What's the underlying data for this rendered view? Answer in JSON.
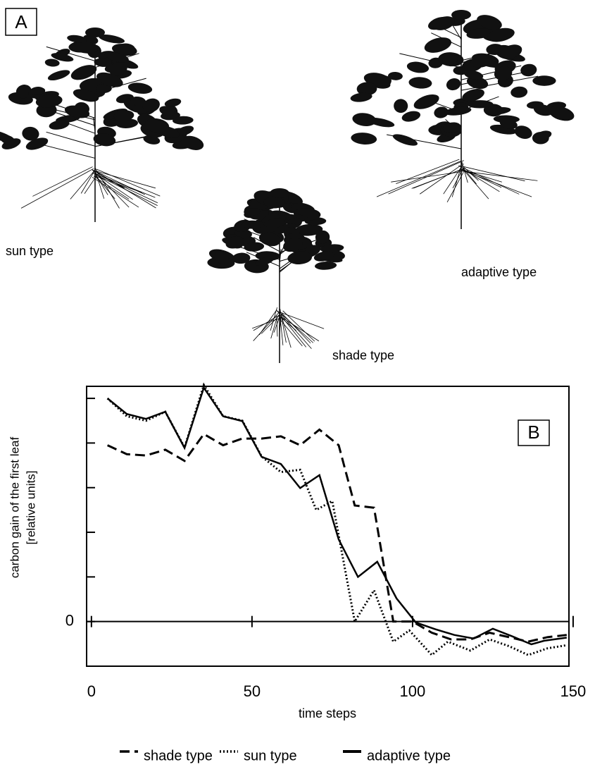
{
  "panel_a": {
    "label": "A",
    "plants": [
      "sun type",
      "shade type",
      "adaptive type"
    ]
  },
  "panel_b_label": "B",
  "chart_data": {
    "type": "line",
    "xlabel": "time steps",
    "ylabel": [
      "carbon gain of the first leaf",
      "[relative units]"
    ],
    "xlim": [
      -1.5,
      148.7
    ],
    "xticks": [
      0,
      50,
      100,
      150
    ],
    "ylim": [
      -1,
      5.27
    ],
    "yticks": [
      0
    ],
    "ytick_marks": [
      1,
      2,
      3,
      4,
      5
    ],
    "zero_line": true,
    "series": [
      {
        "name": "shade type",
        "color": "#000000",
        "style": "dashed",
        "x": [
          5,
          11,
          17,
          23,
          29,
          35,
          41,
          47,
          53,
          59,
          65,
          71,
          77,
          82,
          88,
          94,
          100,
          106,
          112,
          118,
          124,
          130,
          136,
          142,
          148
        ],
        "values": [
          3.95,
          3.75,
          3.72,
          3.85,
          3.6,
          4.2,
          3.95,
          4.1,
          4.1,
          4.15,
          3.95,
          4.3,
          3.95,
          2.6,
          2.55,
          0.0,
          0.0,
          -0.25,
          -0.4,
          -0.4,
          -0.25,
          -0.35,
          -0.45,
          -0.35,
          -0.3
        ]
      },
      {
        "name": "sun type",
        "color": "#000000",
        "style": "dotted",
        "x": [
          5,
          11,
          17,
          23,
          29,
          35,
          41,
          47,
          53,
          59,
          65,
          70,
          75,
          82,
          88,
          94,
          99,
          106,
          111,
          118,
          124,
          130,
          136,
          142,
          148
        ],
        "values": [
          5.0,
          4.6,
          4.5,
          4.7,
          3.9,
          5.3,
          4.6,
          4.5,
          3.7,
          3.35,
          3.4,
          2.5,
          2.7,
          0.0,
          0.7,
          -0.45,
          -0.2,
          -0.75,
          -0.45,
          -0.65,
          -0.4,
          -0.55,
          -0.75,
          -0.6,
          -0.53
        ]
      },
      {
        "name": "adaptive type",
        "color": "#000000",
        "style": "solid",
        "x": [
          5,
          11,
          17,
          23,
          29,
          35,
          41,
          47,
          53,
          59,
          65,
          71,
          77,
          83,
          89,
          95,
          101,
          107,
          113,
          119,
          125,
          131,
          137,
          141,
          148
        ],
        "values": [
          5.0,
          4.65,
          4.54,
          4.7,
          3.89,
          5.24,
          4.6,
          4.49,
          3.69,
          3.53,
          2.99,
          3.28,
          1.84,
          1.0,
          1.34,
          0.52,
          -0.02,
          -0.17,
          -0.3,
          -0.38,
          -0.16,
          -0.33,
          -0.51,
          -0.43,
          -0.36
        ]
      }
    ]
  }
}
